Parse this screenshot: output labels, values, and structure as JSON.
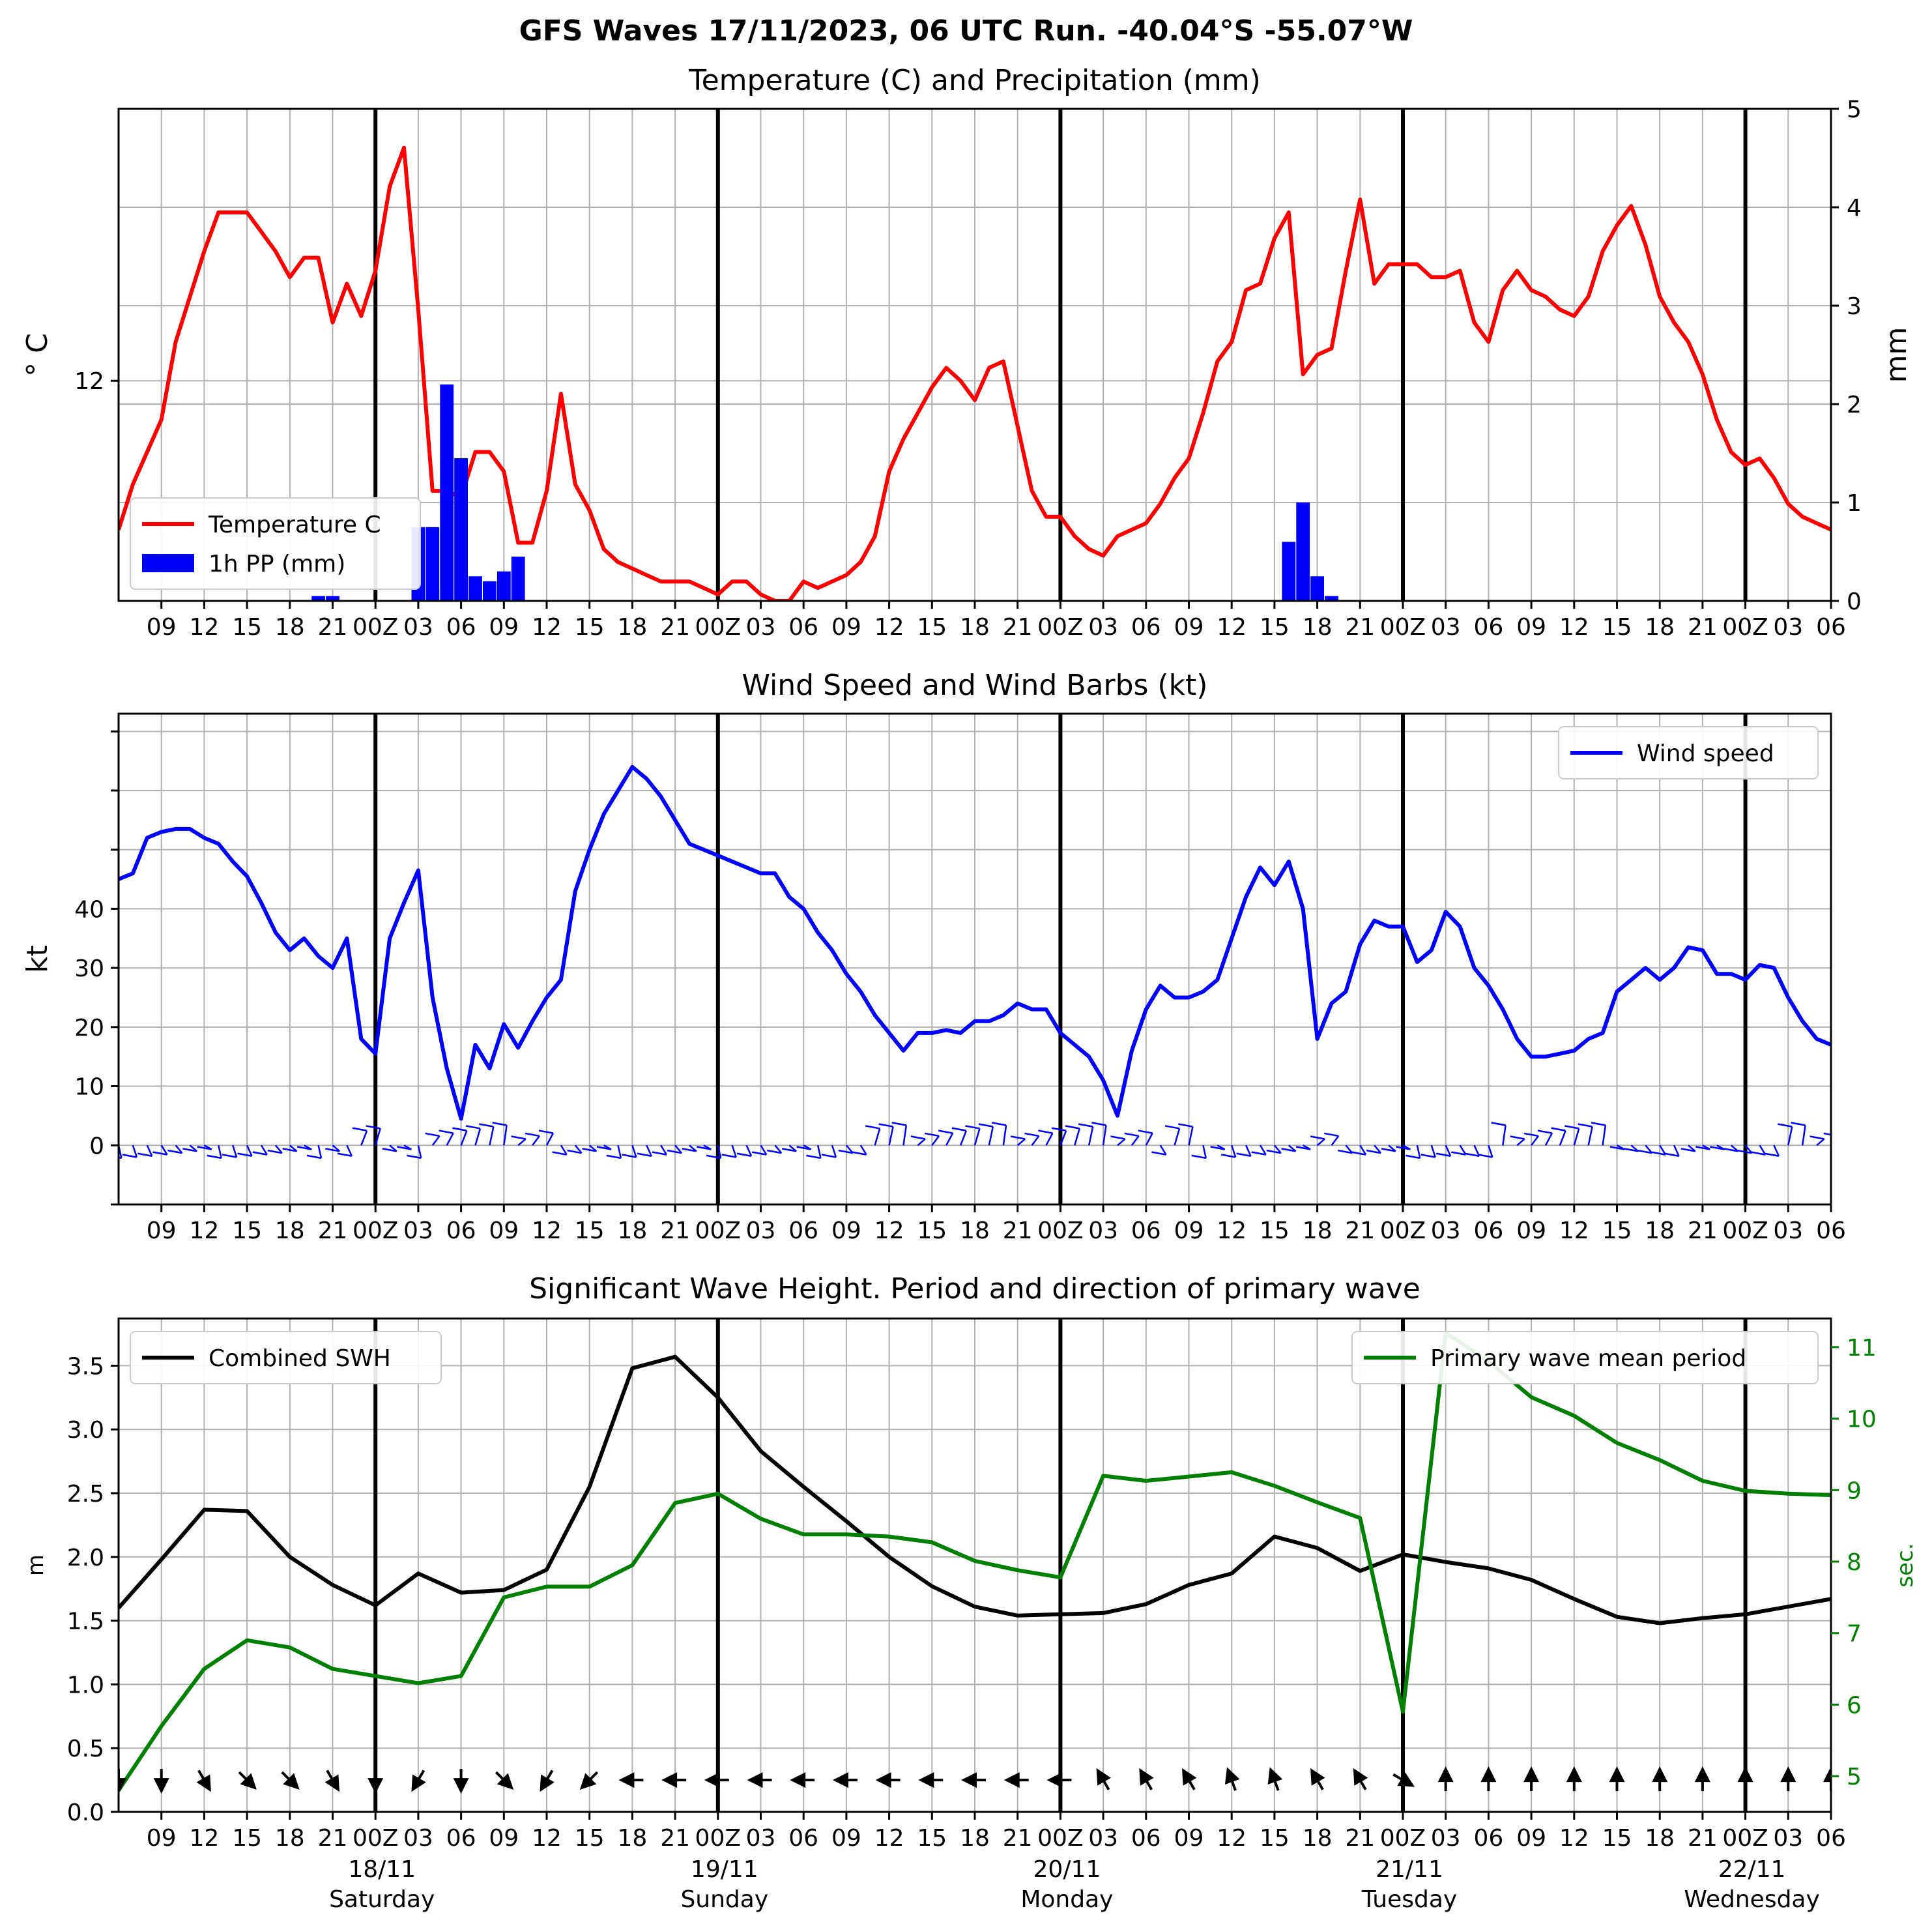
{
  "title": "GFS Waves 17/11/2023, 06 UTC Run. -40.04°S -55.07°W",
  "colors": {
    "temperature": "#ff0000",
    "precipitation": "#0000ff",
    "wind": "#0000ff",
    "swh": "#000000",
    "period": "#008000",
    "grid": "#b0b0b0",
    "day_line": "#000000"
  },
  "time_axis": {
    "tick_labels": [
      "09",
      "12",
      "15",
      "18",
      "21",
      "00Z",
      "03",
      "06",
      "09",
      "12",
      "15",
      "18",
      "21",
      "00Z",
      "03",
      "06",
      "09",
      "12",
      "15",
      "18",
      "21",
      "00Z",
      "03",
      "06",
      "09",
      "12",
      "15",
      "18",
      "21",
      "00Z",
      "03",
      "06",
      "09",
      "12",
      "15",
      "18",
      "21",
      "00Z",
      "03",
      "06"
    ],
    "day_lines_at_hours": [
      18,
      42,
      66,
      90,
      114
    ],
    "day_labels": [
      {
        "date": "18/11",
        "weekday": "Saturday"
      },
      {
        "date": "19/11",
        "weekday": "Sunday"
      },
      {
        "date": "20/11",
        "weekday": "Monday"
      },
      {
        "date": "21/11",
        "weekday": "Tuesday"
      },
      {
        "date": "22/11",
        "weekday": "Wednesday"
      }
    ]
  },
  "chart_data": [
    {
      "type": "line",
      "title": "Temperature (C) and Precipitation (mm)",
      "ylabel": "° C",
      "ylabel_right": "mm",
      "x_range_hours": [
        0,
        120
      ],
      "y_range": [
        8.6,
        16.2
      ],
      "y_ticks": [
        12
      ],
      "y_right_range": [
        0,
        5
      ],
      "y_right_ticks": [
        0,
        1,
        2,
        3,
        4,
        5
      ],
      "legend_position": "lower-left",
      "grid": true,
      "series": [
        {
          "name": "Temperature C",
          "kind": "line",
          "x": [
            0,
            1,
            2,
            3,
            4,
            5,
            6,
            7,
            8,
            9,
            10,
            11,
            12,
            13,
            14,
            15,
            16,
            17,
            18,
            19,
            20,
            21,
            22,
            23,
            24,
            25,
            26,
            27,
            28,
            29,
            30,
            31,
            32,
            33,
            34,
            35,
            36,
            37,
            38,
            39,
            40,
            41,
            42,
            43,
            44,
            45,
            46,
            47,
            48,
            49,
            50,
            51,
            52,
            53,
            54,
            55,
            56,
            57,
            58,
            59,
            60,
            61,
            62,
            63,
            64,
            65,
            66,
            67,
            68,
            69,
            70,
            71,
            72,
            73,
            74,
            75,
            76,
            77,
            78,
            79,
            80,
            81,
            82,
            83,
            84,
            85,
            86,
            87,
            88,
            89,
            90,
            91,
            92,
            93,
            94,
            95,
            96,
            97,
            98,
            99,
            100,
            101,
            102,
            103,
            104,
            105,
            106,
            107,
            108,
            109,
            110,
            111,
            112,
            113,
            114,
            115,
            116,
            117,
            118,
            119,
            120
          ],
          "values": [
            9.7,
            10.4,
            10.9,
            11.4,
            12.6,
            13.3,
            14.0,
            14.6,
            14.6,
            14.6,
            14.3,
            14.0,
            13.6,
            13.9,
            13.9,
            12.9,
            13.5,
            13.0,
            13.7,
            15.0,
            15.6,
            13.1,
            10.3,
            10.3,
            10.2,
            10.9,
            10.9,
            10.6,
            9.5,
            9.5,
            10.3,
            11.8,
            10.4,
            10.0,
            9.4,
            9.2,
            9.1,
            9.0,
            8.9,
            8.9,
            8.9,
            8.8,
            8.7,
            8.9,
            8.9,
            8.7,
            8.6,
            8.6,
            8.9,
            8.8,
            8.9,
            9.0,
            9.2,
            9.6,
            10.6,
            11.1,
            11.5,
            11.9,
            12.2,
            12.0,
            11.7,
            12.2,
            12.3,
            11.3,
            10.3,
            9.9,
            9.9,
            9.6,
            9.4,
            9.3,
            9.6,
            9.7,
            9.8,
            10.1,
            10.5,
            10.8,
            11.5,
            12.3,
            12.6,
            13.4,
            13.5,
            14.2,
            14.6,
            12.1,
            12.4,
            12.5,
            13.7,
            14.8,
            13.5,
            13.8,
            13.8,
            13.8,
            13.6,
            13.6,
            13.7,
            12.9,
            12.6,
            13.4,
            13.7,
            13.4,
            13.3,
            13.1,
            13.0,
            13.3,
            14.0,
            14.4,
            14.7,
            14.1,
            13.3,
            12.9,
            12.6,
            12.1,
            11.4,
            10.9,
            10.7,
            10.8,
            10.5,
            10.1,
            9.9,
            9.8,
            9.7
          ]
        },
        {
          "name": "1h PP (mm)",
          "kind": "bar",
          "axis": "right",
          "x": [
            14,
            15,
            21,
            22,
            23,
            24,
            25,
            26,
            27,
            28,
            82,
            83,
            84,
            85
          ],
          "values": [
            0.05,
            0.05,
            0.75,
            0.75,
            2.2,
            1.45,
            0.25,
            0.2,
            0.3,
            0.45,
            0.6,
            1.0,
            0.25,
            0.05
          ]
        }
      ]
    },
    {
      "type": "line",
      "title": "Wind Speed and Wind Barbs (kt)",
      "ylabel": "kt",
      "x_range_hours": [
        0,
        120
      ],
      "y_range": [
        -10,
        73
      ],
      "y_ticks": [
        0,
        10,
        20,
        30,
        40
      ],
      "legend_position": "top-right",
      "grid": true,
      "series": [
        {
          "name": "Wind speed",
          "x": [
            0,
            1,
            2,
            3,
            4,
            5,
            6,
            7,
            8,
            9,
            10,
            11,
            12,
            13,
            14,
            15,
            16,
            17,
            18,
            19,
            20,
            21,
            22,
            23,
            24,
            25,
            26,
            27,
            28,
            29,
            30,
            31,
            32,
            33,
            34,
            35,
            36,
            37,
            38,
            39,
            40,
            41,
            42,
            43,
            44,
            45,
            46,
            47,
            48,
            49,
            50,
            51,
            52,
            53,
            54,
            55,
            56,
            57,
            58,
            59,
            60,
            61,
            62,
            63,
            64,
            65,
            66,
            67,
            68,
            69,
            70,
            71,
            72,
            73,
            74,
            75,
            76,
            77,
            78,
            79,
            80,
            81,
            82,
            83,
            84,
            85,
            86,
            87,
            88,
            89,
            90,
            91,
            92,
            93,
            94,
            95,
            96,
            97,
            98,
            99,
            100,
            101,
            102,
            103,
            104,
            105,
            106,
            107,
            108,
            109,
            110,
            111,
            112,
            113,
            114,
            115,
            116,
            117,
            118,
            119,
            120
          ],
          "values": [
            45,
            46,
            52,
            53,
            53.5,
            53.5,
            52,
            51,
            48,
            45.5,
            41,
            36,
            33,
            35,
            32,
            30,
            35,
            18,
            15.5,
            35,
            41,
            46.5,
            25,
            13,
            4.5,
            17,
            13,
            20.5,
            16.5,
            21,
            25,
            28,
            43,
            50,
            56,
            60,
            64,
            62,
            59,
            55,
            51,
            50,
            49,
            48,
            47,
            46,
            46,
            42,
            40,
            36,
            33,
            29,
            26,
            22,
            19,
            16,
            19,
            19,
            19.5,
            19,
            21,
            21,
            22,
            24,
            23,
            23,
            19,
            17,
            15,
            11,
            5,
            16,
            23,
            27,
            25,
            25,
            26,
            28,
            35,
            42,
            47,
            44,
            48,
            40,
            18,
            24,
            26,
            34,
            38,
            37,
            37,
            31,
            33,
            39.5,
            37,
            30,
            27,
            23,
            18,
            15,
            15,
            15.5,
            16,
            18,
            19,
            26,
            28,
            30,
            28,
            30,
            33.5,
            33,
            29,
            29,
            28,
            30.5,
            30,
            25,
            21,
            18,
            17
          ],
          "barb_points": "directional barbs along y=0 at each hour"
        }
      ]
    },
    {
      "type": "line",
      "title": "Significant Wave Height. Period and direction of primary wave",
      "ylabel": "m",
      "ylabel_right": "sec.",
      "x_range_hours": [
        0,
        120
      ],
      "y_range": [
        0,
        3.87
      ],
      "y_ticks": [
        0.0,
        0.5,
        1.0,
        1.5,
        2.0,
        2.5,
        3.0,
        3.5
      ],
      "y_right_range": [
        4.5,
        11.4
      ],
      "y_right_ticks": [
        5,
        6,
        7,
        8,
        9,
        10,
        11
      ],
      "grid": true,
      "series": [
        {
          "name": "Combined SWH",
          "legend_position": "top-left",
          "x": [
            0,
            3,
            6,
            9,
            12,
            15,
            18,
            21,
            24,
            27,
            30,
            33,
            36,
            39,
            42,
            45,
            48,
            51,
            54,
            57,
            60,
            63,
            66,
            69,
            72,
            75,
            78,
            81,
            84,
            87,
            90,
            93,
            96,
            99,
            102,
            105,
            108,
            111,
            114,
            117,
            120
          ],
          "values": [
            1.6,
            1.98,
            2.37,
            2.36,
            2.0,
            1.78,
            1.62,
            1.87,
            1.72,
            1.74,
            1.9,
            2.55,
            3.48,
            3.57,
            3.25,
            2.83,
            2.55,
            2.28,
            2.0,
            1.77,
            1.61,
            1.54,
            1.55,
            1.56,
            1.63,
            1.78,
            1.87,
            2.16,
            2.07,
            1.89,
            2.02,
            1.96,
            1.91,
            1.82,
            1.67,
            1.53,
            1.48,
            1.52,
            1.55,
            1.61,
            1.67
          ]
        },
        {
          "name": "Primary wave mean period",
          "axis": "right",
          "legend_position": "top-right",
          "x": [
            0,
            3,
            6,
            9,
            12,
            15,
            18,
            21,
            24,
            27,
            30,
            33,
            36,
            39,
            42,
            45,
            48,
            51,
            54,
            57,
            60,
            63,
            66,
            69,
            72,
            75,
            78,
            81,
            84,
            87,
            90,
            93,
            96,
            99,
            102,
            105,
            108,
            111,
            114,
            117,
            120
          ],
          "values": [
            4.8,
            5.7,
            6.5,
            6.9,
            6.8,
            6.5,
            6.4,
            6.3,
            6.4,
            7.5,
            7.65,
            7.65,
            7.95,
            8.82,
            8.95,
            8.6,
            8.38,
            8.38,
            8.35,
            8.27,
            8.01,
            7.88,
            7.78,
            9.2,
            9.13,
            9.19,
            9.25,
            9.06,
            8.83,
            8.61,
            5.9,
            11.2,
            10.8,
            10.3,
            10.04,
            9.66,
            9.42,
            9.13,
            8.99,
            8.95,
            8.93
          ]
        },
        {
          "name": "primary wave direction",
          "kind": "arrows",
          "x": [
            0,
            3,
            6,
            9,
            12,
            15,
            18,
            21,
            24,
            27,
            30,
            33,
            36,
            39,
            42,
            45,
            48,
            51,
            54,
            57,
            60,
            63,
            66,
            69,
            72,
            75,
            78,
            81,
            84,
            87,
            90,
            93,
            96,
            99,
            102,
            105,
            108,
            111,
            114,
            117,
            120
          ],
          "direction_deg_towards": [
            180,
            180,
            150,
            135,
            135,
            150,
            180,
            210,
            180,
            135,
            210,
            225,
            270,
            270,
            270,
            270,
            270,
            270,
            270,
            270,
            270,
            270,
            270,
            330,
            330,
            330,
            340,
            340,
            330,
            330,
            120,
            360,
            360,
            360,
            360,
            360,
            360,
            360,
            360,
            360,
            360
          ]
        }
      ]
    }
  ]
}
